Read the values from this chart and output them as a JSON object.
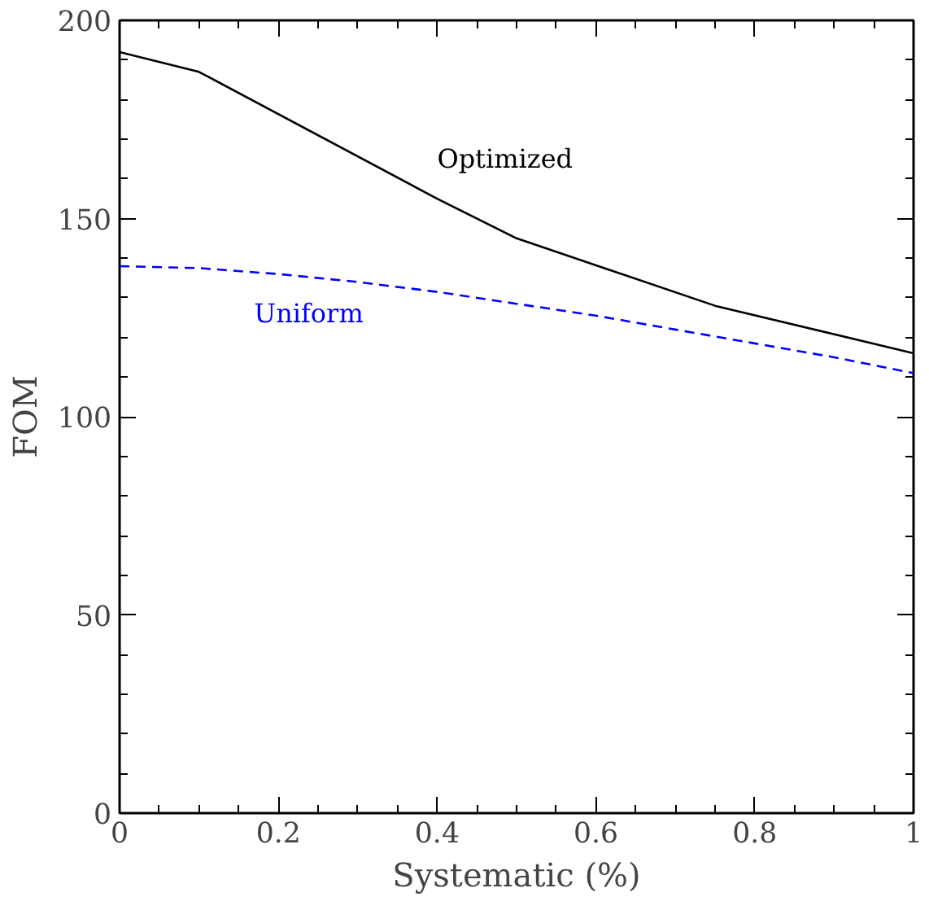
{
  "chart_data": {
    "type": "line",
    "xlabel": "Systematic (%)",
    "ylabel": "FOM",
    "xlim": [
      0,
      1
    ],
    "xticks": [
      0,
      0.2,
      0.4,
      0.6,
      0.8,
      1
    ],
    "ylim": [
      0,
      200
    ],
    "yticks": [
      0,
      50,
      100,
      150,
      200
    ],
    "grid": false,
    "legend": false,
    "series": [
      {
        "name": "Optimized",
        "color": "#000000",
        "line_style": "solid",
        "x": [
          0,
          0.1,
          0.4,
          0.5,
          0.75,
          1
        ],
        "values": [
          192,
          187,
          155,
          145,
          128,
          116
        ]
      },
      {
        "name": "Uniform",
        "color": "#0000ff",
        "line_style": "dashed",
        "x": [
          0,
          0.1,
          0.2,
          0.3,
          0.4,
          0.5,
          0.6,
          0.7,
          0.8,
          0.9,
          1
        ],
        "values": [
          138,
          137.5,
          136,
          134,
          131.5,
          128.5,
          125.5,
          122,
          118.5,
          115,
          111
        ]
      }
    ]
  }
}
